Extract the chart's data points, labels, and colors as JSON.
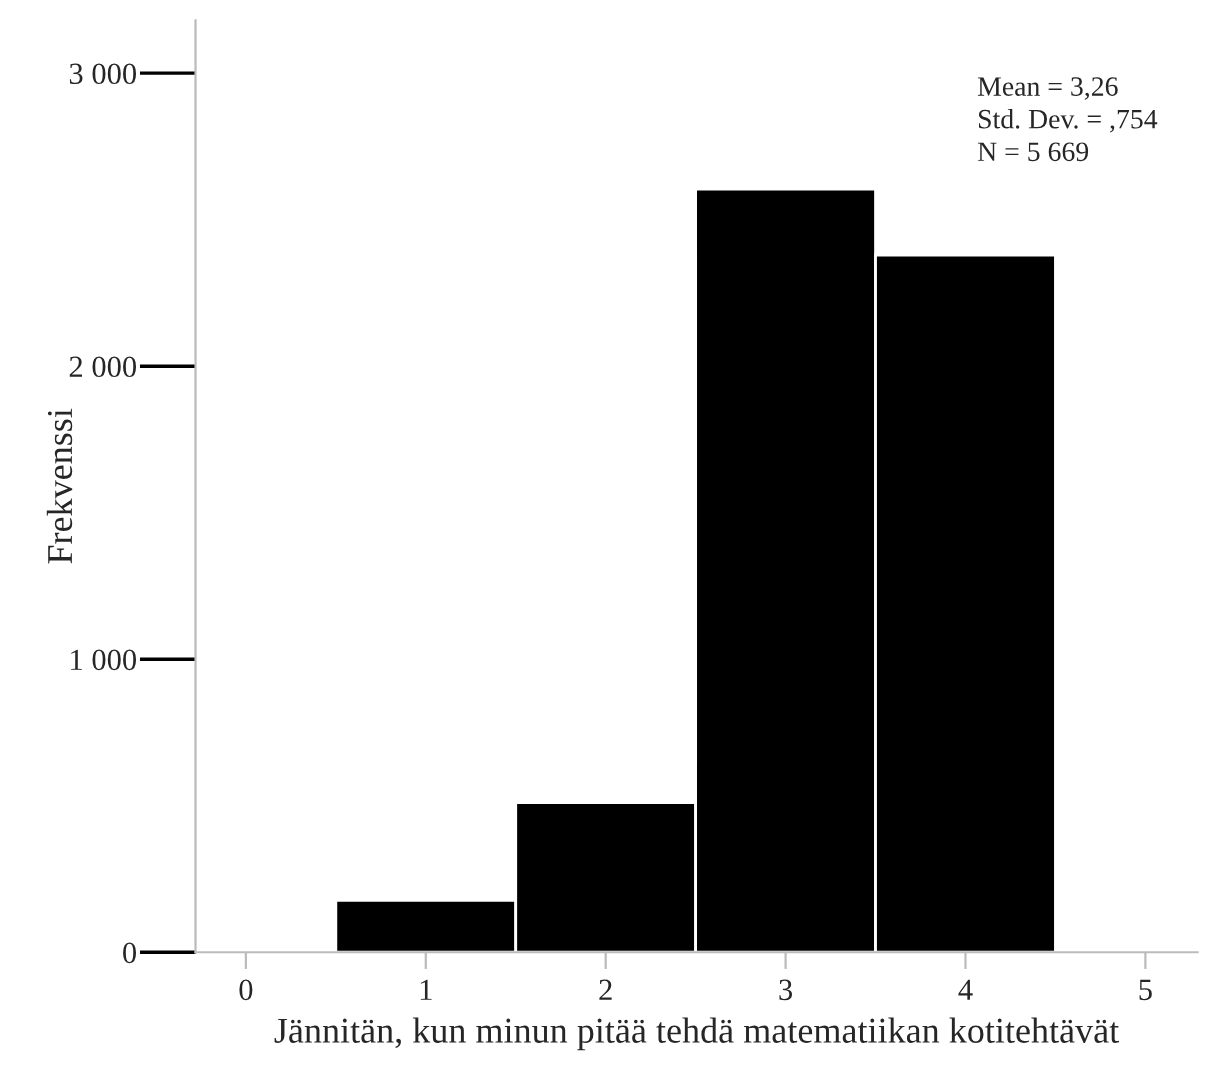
{
  "chart_data": {
    "type": "histogram",
    "xlabel": "Jännitän, kun minun pitää tehdä matematiikan kotitehtävät",
    "ylabel": "Frekvenssi",
    "bins": [
      0.5,
      1.5,
      2.5,
      3.5,
      4.5
    ],
    "values": [
      177,
      511,
      2604,
      2379
    ],
    "color": "#000000",
    "xlim": [
      -0.28,
      5.29
    ],
    "xticks": [
      0,
      1,
      2,
      3,
      4,
      5
    ],
    "ylim": [
      0,
      3180
    ],
    "yticks": [
      0,
      {
        "value": 1000,
        "label": "1 000"
      },
      {
        "value": 2000,
        "label": "2 000"
      },
      {
        "value": 3000,
        "label": "3 000"
      }
    ],
    "annotations": [
      "Mean = 3,26",
      "Std. Dev. = ,754",
      "N = 5 669"
    ],
    "grid": false,
    "legend": false
  }
}
